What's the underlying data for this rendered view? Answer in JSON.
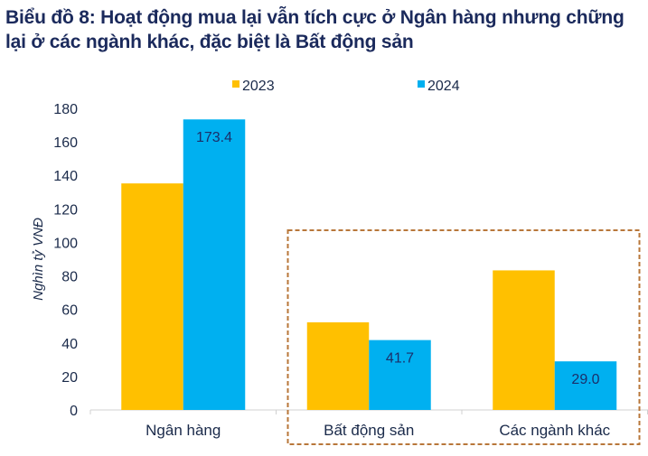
{
  "title": "Biểu đồ 8: Hoạt động mua lại vẫn tích cực ở Ngân hàng nhưng chững lại ở các ngành khác, đặc biệt là Bất động sản",
  "chart_data": {
    "type": "bar",
    "title": "Biểu đồ 8: Hoạt động mua lại vẫn tích cực ở Ngân hàng nhưng chững lại ở các ngành khác, đặc biệt là Bất động sản",
    "categories": [
      "Ngân hàng",
      "Bất động sản",
      "Các ngành khác"
    ],
    "series": [
      {
        "name": "2023",
        "color": "#FFC000",
        "values": [
          135.2,
          52.3,
          83.3
        ],
        "labels": [
          null,
          null,
          null
        ]
      },
      {
        "name": "2024",
        "color": "#00B0F0",
        "values": [
          173.4,
          41.7,
          29.0
        ],
        "labels": [
          "173.4",
          "41.7",
          "29.0"
        ]
      }
    ],
    "xlabel": "",
    "ylabel": "Nghìn tỷ VNĐ",
    "ylim": [
      0,
      180
    ],
    "yticks": [
      "0",
      "20",
      "40",
      "60",
      "80",
      "100",
      "120",
      "140",
      "160",
      "180"
    ],
    "grid": false,
    "legend": "top-center",
    "annotation": {
      "type": "dashed-box",
      "highlights": [
        "Bất động sản",
        "Các ngành khác"
      ],
      "color": "#B8773A"
    }
  }
}
